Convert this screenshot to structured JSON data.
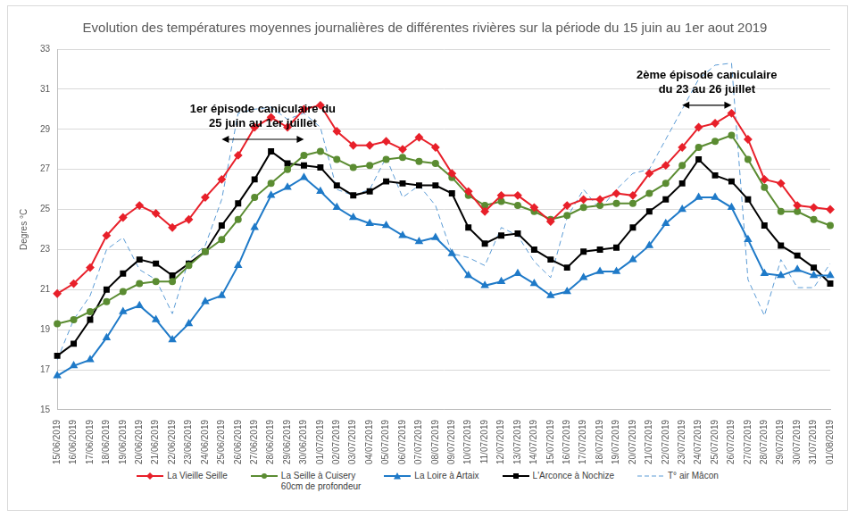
{
  "chart_data": {
    "type": "line",
    "title": "Evolution des températures moyennes journalières de différentes rivières sur la période du 15 juin au 1er aout 2019",
    "y_label": "Degres °C",
    "categories": [
      "15/06/2019",
      "16/06/2019",
      "17/06/2019",
      "18/06/2019",
      "19/06/2019",
      "20/06/2019",
      "21/06/2019",
      "22/06/2019",
      "23/06/2019",
      "24/06/2019",
      "25/06/2019",
      "26/06/2019",
      "27/06/2019",
      "28/06/2019",
      "29/06/2019",
      "30/06/2019",
      "01/07/2019",
      "02/07/2019",
      "03/07/2019",
      "04/07/2019",
      "05/07/2019",
      "06/07/2019",
      "07/07/2019",
      "08/07/2019",
      "09/07/2019",
      "10/07/2019",
      "11/07/2019",
      "12/07/2019",
      "13/07/2019",
      "14/07/2019",
      "15/07/2019",
      "16/07/2019",
      "17/07/2019",
      "18/07/2019",
      "19/07/2019",
      "20/07/2019",
      "21/07/2019",
      "22/07/2019",
      "23/07/2019",
      "24/07/2019",
      "25/07/2019",
      "26/07/2019",
      "27/07/2019",
      "28/07/2019",
      "29/07/2019",
      "30/07/2019",
      "31/07/2019",
      "01/08/2019"
    ],
    "series": [
      {
        "name": "La Vieille Seille",
        "color": "#e8202a",
        "marker": "diamond",
        "line_style": "solid",
        "values": [
          20.8,
          21.3,
          22.1,
          23.7,
          24.6,
          25.2,
          24.8,
          24.1,
          24.5,
          25.6,
          26.5,
          27.7,
          29.1,
          29.6,
          29.1,
          30.0,
          30.2,
          28.9,
          28.2,
          28.2,
          28.4,
          28.0,
          28.6,
          28.1,
          26.8,
          25.9,
          24.9,
          25.7,
          25.7,
          25.1,
          24.4,
          25.2,
          25.5,
          25.5,
          25.8,
          25.7,
          26.8,
          27.2,
          28.1,
          29.1,
          29.3,
          29.8,
          28.5,
          26.5,
          26.3,
          25.2,
          25.1,
          25.0
        ]
      },
      {
        "name": "La Seille à Cuisery\n60cm de profondeur",
        "color": "#5b8c32",
        "marker": "circle",
        "line_style": "solid",
        "values": [
          19.3,
          19.5,
          19.9,
          20.4,
          20.9,
          21.3,
          21.4,
          21.4,
          22.2,
          22.9,
          23.5,
          24.5,
          25.6,
          26.3,
          27.0,
          27.7,
          27.9,
          27.5,
          27.1,
          27.2,
          27.5,
          27.6,
          27.4,
          27.3,
          26.6,
          25.7,
          25.2,
          25.4,
          25.2,
          24.9,
          24.5,
          24.7,
          25.1,
          25.2,
          25.3,
          25.3,
          25.8,
          26.3,
          27.2,
          28.1,
          28.4,
          28.7,
          27.5,
          26.1,
          24.9,
          24.9,
          24.5,
          24.2
        ]
      },
      {
        "name": "La Loire à Artaix",
        "color": "#1f7ac8",
        "marker": "triangle",
        "line_style": "solid",
        "values": [
          16.7,
          17.2,
          17.5,
          18.6,
          19.9,
          20.2,
          19.5,
          18.5,
          19.3,
          20.4,
          20.7,
          22.2,
          24.1,
          25.7,
          26.1,
          26.6,
          25.9,
          25.1,
          24.6,
          24.3,
          24.2,
          23.7,
          23.4,
          23.6,
          22.8,
          21.7,
          21.2,
          21.4,
          21.8,
          21.3,
          20.7,
          20.9,
          21.6,
          21.9,
          21.9,
          22.5,
          23.2,
          24.3,
          25.0,
          25.6,
          25.6,
          25.1,
          23.5,
          21.8,
          21.7,
          22.0,
          21.7,
          21.7
        ]
      },
      {
        "name": "L'Arconce à Nochize",
        "color": "#000000",
        "marker": "square",
        "line_style": "solid",
        "values": [
          17.7,
          18.3,
          19.5,
          21.0,
          21.8,
          22.5,
          22.3,
          21.7,
          22.3,
          22.9,
          24.2,
          25.3,
          26.5,
          27.9,
          27.3,
          27.2,
          27.1,
          26.2,
          25.7,
          25.9,
          26.4,
          26.3,
          26.2,
          26.2,
          25.8,
          24.1,
          23.3,
          23.7,
          23.8,
          23.0,
          22.5,
          22.1,
          22.9,
          23.0,
          23.1,
          24.1,
          24.9,
          25.5,
          26.3,
          27.5,
          26.7,
          26.4,
          25.5,
          24.2,
          23.2,
          22.7,
          22.1,
          21.3
        ]
      },
      {
        "name": "T° air Mâcon",
        "color": "#5b9bd5",
        "marker": "none",
        "line_style": "dashed",
        "values": [
          17.5,
          19.5,
          20.7,
          23.0,
          23.6,
          22.0,
          21.5,
          19.8,
          22.5,
          23.2,
          25.5,
          29.8,
          30.0,
          30.1,
          29.5,
          29.8,
          29.1,
          26.0,
          25.7,
          26.0,
          27.6,
          25.6,
          26.2,
          25.2,
          22.8,
          22.6,
          22.2,
          24.1,
          23.7,
          22.4,
          21.6,
          24.6,
          26.0,
          25.0,
          26.0,
          26.8,
          27.0,
          28.5,
          30.0,
          31.5,
          32.2,
          32.3,
          21.5,
          19.7,
          22.5,
          21.1,
          21.1,
          22.3
        ]
      }
    ],
    "annotations": [
      {
        "text": [
          "1er épisode caniculaire du",
          "25 juin au 1er juillet"
        ],
        "x_start": "25/06/2019",
        "x_end": "30/06/2019",
        "y": 28.5
      },
      {
        "text": [
          "2ème épisode caniculaire",
          "du 23 au 26 juillet"
        ],
        "x_start": "23/07/2019",
        "x_end": "26/07/2019",
        "y": 30.2
      }
    ],
    "ylim": [
      15,
      33
    ],
    "yticks": [
      15,
      17,
      19,
      21,
      23,
      25,
      27,
      29,
      31,
      33
    ],
    "grid": true,
    "legend": "bottom"
  }
}
